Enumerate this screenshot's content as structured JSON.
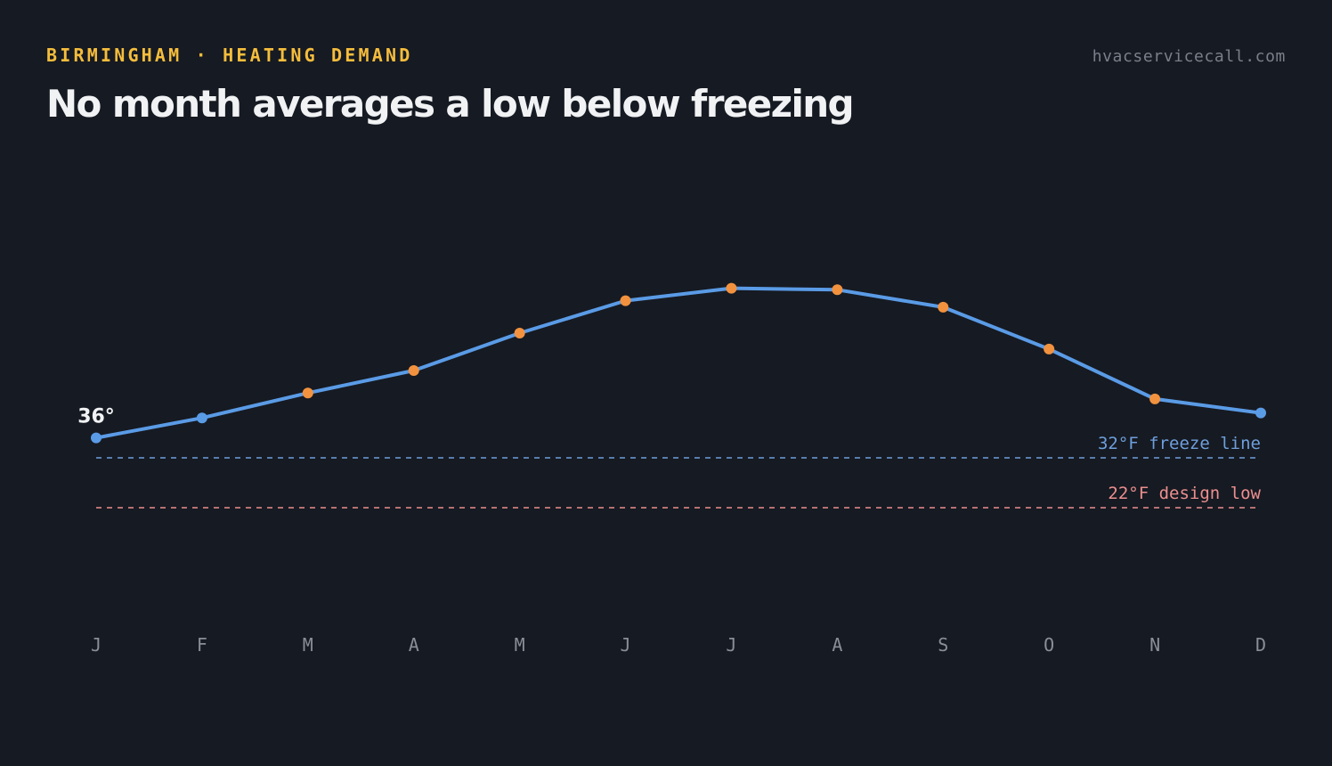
{
  "header": {
    "kicker": "BIRMINGHAM · HEATING DEMAND",
    "title": "No month averages a low below freezing",
    "source": "hvacservicecall.com"
  },
  "colors": {
    "background": "#161a22",
    "line": "#5a9be6",
    "marker_default": "#5a9be6",
    "marker_highlight": "#f2923f",
    "freeze": "#6e9fdc",
    "design": "#ec8f8f",
    "kicker": "#f5bd3c"
  },
  "chart_data": {
    "type": "line",
    "title": "No month averages a low below freezing",
    "xlabel": "",
    "ylabel": "",
    "categories": [
      "J",
      "F",
      "M",
      "A",
      "M",
      "J",
      "J",
      "A",
      "S",
      "O",
      "N",
      "D"
    ],
    "series": [
      {
        "values": [
          36,
          40,
          45,
          49.5,
          57,
          63.5,
          66,
          65.7,
          62.2,
          53.8,
          43.8,
          41
        ],
        "highlight": [
          false,
          false,
          true,
          true,
          true,
          true,
          true,
          true,
          true,
          true,
          true,
          false
        ]
      }
    ],
    "annotations": [
      {
        "category_index": 0,
        "text": "36°"
      }
    ],
    "reference_lines": [
      {
        "value": 32,
        "label": "32°F freeze line",
        "color": "#6e9fdc"
      },
      {
        "value": 22,
        "label": "22°F design low",
        "color": "#ec8f8f"
      }
    ],
    "ylim": [
      10,
      75
    ],
    "grid": false,
    "legend": "none"
  }
}
